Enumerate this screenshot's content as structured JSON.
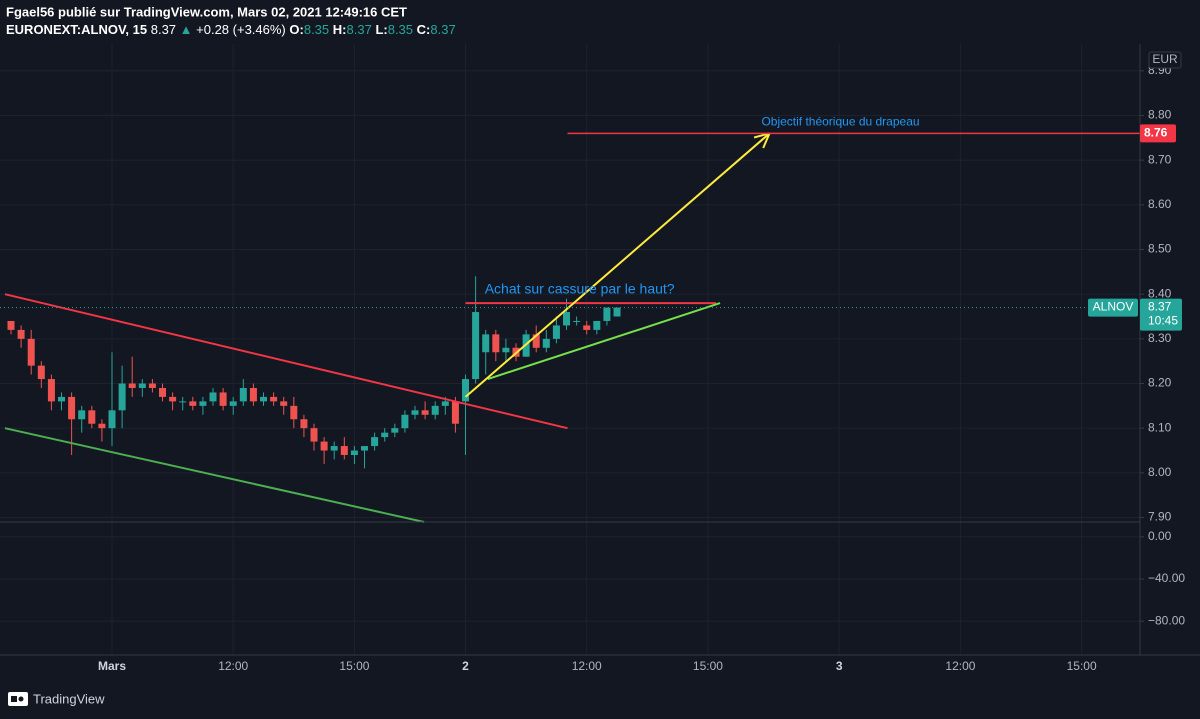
{
  "header": {
    "author_line": "Fgael56 publié sur TradingView.com, Mars 02, 2021 12:49:16 CET",
    "symbol": "EURONEXT:ALNOV, 15",
    "change": "+0.28 (+3.46%)",
    "ohlc_labels": [
      "O:",
      "H:",
      "L:",
      "C:"
    ]
  },
  "currency": "EUR",
  "countdown": "10:45",
  "brand": "TradingView",
  "chart_data": {
    "type": "candlestick",
    "x": [
      -10,
      -9,
      -8,
      -7,
      -6,
      -5,
      -4,
      -3,
      -2,
      -1,
      0,
      1,
      2,
      3,
      4,
      5,
      6,
      7,
      8,
      9,
      10,
      11,
      12,
      13,
      14,
      15,
      16,
      17,
      18,
      19,
      20,
      21,
      22,
      23,
      24,
      25,
      26,
      27,
      28,
      29,
      30,
      31,
      32,
      33,
      34,
      35,
      36,
      37,
      38,
      39,
      40,
      41,
      42,
      43,
      44,
      45,
      46,
      47,
      48,
      49,
      50
    ],
    "series": [
      {
        "name": "ALNOV",
        "up_color": "#26a69a",
        "down_color": "#ef5350",
        "open": [
          8.34,
          8.32,
          8.3,
          8.24,
          8.21,
          8.16,
          8.17,
          8.12,
          8.14,
          8.11,
          8.1,
          8.14,
          8.2,
          8.19,
          8.2,
          8.19,
          8.17,
          8.16,
          8.16,
          8.15,
          8.16,
          8.18,
          8.15,
          8.16,
          8.19,
          8.16,
          8.17,
          8.16,
          8.15,
          8.12,
          8.1,
          8.07,
          8.05,
          8.06,
          8.04,
          8.05,
          8.06,
          8.08,
          8.09,
          8.1,
          8.13,
          8.14,
          8.13,
          8.15,
          8.16,
          8.16,
          8.21,
          8.27,
          8.31,
          8.27,
          8.28,
          8.26,
          8.31,
          8.28,
          8.3,
          8.33,
          8.34,
          8.33,
          8.32,
          8.34,
          8.35
        ],
        "high": [
          8.34,
          8.33,
          8.32,
          8.25,
          8.22,
          8.18,
          8.18,
          8.15,
          8.15,
          8.12,
          8.27,
          8.24,
          8.26,
          8.21,
          8.21,
          8.2,
          8.18,
          8.17,
          8.17,
          8.17,
          8.19,
          8.19,
          8.17,
          8.21,
          8.2,
          8.18,
          8.18,
          8.17,
          8.17,
          8.13,
          8.11,
          8.08,
          8.07,
          8.08,
          8.06,
          8.06,
          8.09,
          8.1,
          8.11,
          8.14,
          8.15,
          8.16,
          8.16,
          8.17,
          8.17,
          8.22,
          8.44,
          8.32,
          8.32,
          8.3,
          8.29,
          8.32,
          8.33,
          8.32,
          8.35,
          8.39,
          8.35,
          8.34,
          8.34,
          8.37,
          8.37
        ],
        "low": [
          8.31,
          8.28,
          8.22,
          8.19,
          8.14,
          8.14,
          8.04,
          8.09,
          8.1,
          8.07,
          8.06,
          8.1,
          8.17,
          8.17,
          8.18,
          8.16,
          8.14,
          8.14,
          8.14,
          8.13,
          8.15,
          8.14,
          8.13,
          8.15,
          8.15,
          8.15,
          8.15,
          8.13,
          8.1,
          8.08,
          8.05,
          8.02,
          8.03,
          8.03,
          8.02,
          8.01,
          8.05,
          8.07,
          8.08,
          8.09,
          8.12,
          8.12,
          8.12,
          8.13,
          8.09,
          8.04,
          8.2,
          8.22,
          8.25,
          8.25,
          8.25,
          8.26,
          8.27,
          8.27,
          8.29,
          8.32,
          8.33,
          8.31,
          8.31,
          8.33,
          8.35
        ],
        "close": [
          8.32,
          8.3,
          8.24,
          8.21,
          8.16,
          8.17,
          8.12,
          8.14,
          8.11,
          8.1,
          8.14,
          8.2,
          8.19,
          8.2,
          8.19,
          8.17,
          8.16,
          8.16,
          8.15,
          8.16,
          8.18,
          8.15,
          8.16,
          8.19,
          8.16,
          8.17,
          8.16,
          8.15,
          8.12,
          8.1,
          8.07,
          8.05,
          8.06,
          8.04,
          8.05,
          8.06,
          8.08,
          8.09,
          8.1,
          8.13,
          8.14,
          8.13,
          8.15,
          8.16,
          8.11,
          8.21,
          8.36,
          8.31,
          8.27,
          8.28,
          8.26,
          8.31,
          8.28,
          8.3,
          8.33,
          8.36,
          8.34,
          8.32,
          8.34,
          8.37,
          8.37
        ]
      }
    ],
    "xlim": [
      -11.09,
      101.78
    ],
    "xticks": [
      {
        "value": 0,
        "label": "Mars"
      },
      {
        "value": 12,
        "label": "12:00"
      },
      {
        "value": 24,
        "label": "15:00"
      },
      {
        "value": 35,
        "label": "2"
      },
      {
        "value": 47,
        "label": "12:00"
      },
      {
        "value": 59,
        "label": "15:00"
      },
      {
        "value": 72,
        "label": "3"
      },
      {
        "value": 84,
        "label": "12:00"
      },
      {
        "value": 96,
        "label": "15:00"
      }
    ],
    "ylim": [
      7.89,
      8.96
    ],
    "yticks": [
      {
        "value": 7.9,
        "label": "7.90"
      },
      {
        "value": 8.0,
        "label": "8.00"
      },
      {
        "value": 8.1,
        "label": "8.10"
      },
      {
        "value": 8.2,
        "label": "8.20"
      },
      {
        "value": 8.3,
        "label": "8.30"
      },
      {
        "value": 8.4,
        "label": "8.40"
      },
      {
        "value": 8.5,
        "label": "8.50"
      },
      {
        "value": 8.6,
        "label": "8.60"
      },
      {
        "value": 8.7,
        "label": "8.70"
      },
      {
        "value": 8.8,
        "label": "8.80"
      },
      {
        "value": 8.9,
        "label": "8.90"
      }
    ],
    "y2lim": [
      -112,
      14
    ],
    "y2ticks": [
      {
        "value": 0,
        "label": "0.00"
      },
      {
        "value": -40,
        "label": "−40.00"
      },
      {
        "value": -80,
        "label": "−80.00"
      }
    ],
    "grid": true,
    "trendlines": [
      {
        "color": "#f23645",
        "points": [
          [
            -10.6,
            8.4
          ],
          [
            45.1,
            8.1
          ]
        ]
      },
      {
        "color": "#4caf50",
        "points": [
          [
            -10.6,
            8.1
          ],
          [
            30.9,
            7.89
          ]
        ]
      },
      {
        "color": "#f23645",
        "points": [
          [
            35.0,
            8.38
          ],
          [
            59.8,
            8.38
          ]
        ]
      },
      {
        "color": "#76e04a",
        "points": [
          [
            37.2,
            8.21
          ],
          [
            60.2,
            8.38
          ]
        ]
      },
      {
        "color": "#ffeb3b",
        "arrow": true,
        "points": [
          [
            35.0,
            8.17
          ],
          [
            65.1,
            8.76
          ]
        ]
      }
    ],
    "target": {
      "price": 8.76,
      "x": 45.1,
      "color": "#f23645"
    },
    "annotations": [
      {
        "text": "Objectif théorique du drapeau",
        "x": 64.3,
        "y": 8.785,
        "color": "#2196f3"
      },
      {
        "text": "Achat sur cassure par le haut?",
        "x": 36.9,
        "y": 8.41,
        "color": "#2196f3"
      }
    ]
  }
}
